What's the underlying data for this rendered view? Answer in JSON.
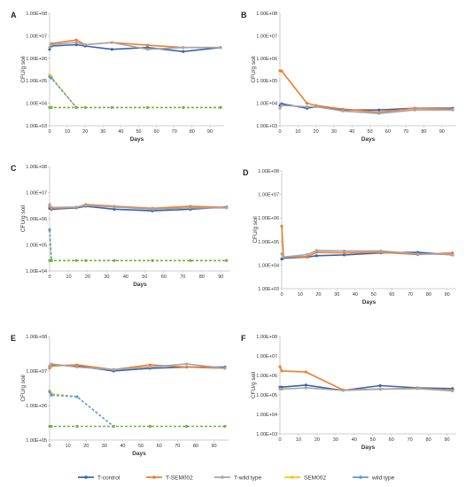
{
  "colors": {
    "T-control": "#3a64b0",
    "T-SEM002": "#ee7d30",
    "T-wild type": "#a5a5a5",
    "SEM002": "#f5c518",
    "wild type": "#5b9bd5",
    "dashed_green": "#6fb33f"
  },
  "legend": {
    "items": [
      "T-control",
      "T-SEM002",
      "T-wild type",
      "SEM002",
      "wild type"
    ]
  },
  "chart_data": [
    {
      "type": "line",
      "panel": "A",
      "xlabel": "Days",
      "ylabel": "CFU/g soil",
      "yscale": "log",
      "ylim": [
        1000,
        100000000
      ],
      "xlim": [
        0,
        98
      ],
      "yticks": [
        "1.00E+03",
        "1.00E+04",
        "1.00E+05",
        "1.00E+06",
        "1.00E+07",
        "1.00E+08"
      ],
      "xticks": [
        0,
        10,
        20,
        30,
        40,
        50,
        60,
        70,
        80,
        90
      ],
      "series": [
        {
          "name": "T-control",
          "x": [
            0,
            1,
            15,
            20,
            35,
            55,
            75,
            96
          ],
          "y": [
            2500000,
            3500000,
            4000000,
            3500000,
            2500000,
            3000000,
            2000000,
            3000000
          ]
        },
        {
          "name": "T-SEM002",
          "x": [
            0,
            1,
            15,
            20,
            35,
            55,
            75,
            96
          ],
          "y": [
            3000000,
            4500000,
            6500000,
            4000000,
            5000000,
            3800000,
            3000000,
            3000000
          ]
        },
        {
          "name": "T-wild type",
          "x": [
            0,
            1,
            15,
            20,
            35,
            55,
            75,
            96
          ],
          "y": [
            3000000,
            4000000,
            5000000,
            4000000,
            5000000,
            2500000,
            3000000,
            3000000
          ]
        },
        {
          "name": "SEM002",
          "x": [
            0,
            1,
            15
          ],
          "y": [
            180000,
            150000,
            6500
          ],
          "dashed": true
        },
        {
          "name": "wild type",
          "x": [
            0,
            1,
            15
          ],
          "y": [
            150000,
            130000,
            6500
          ],
          "dashed": true
        },
        {
          "name": "green-dashed",
          "x": [
            0,
            1,
            15,
            20,
            35,
            55,
            75,
            96
          ],
          "y": [
            6500,
            6500,
            6500,
            6500,
            6500,
            6500,
            6500,
            6500
          ],
          "dashed": true
        }
      ]
    },
    {
      "type": "line",
      "panel": "B",
      "xlabel": "Days",
      "ylabel": "CFU/g soil",
      "yscale": "log",
      "ylim": [
        1000,
        100000000
      ],
      "xlim": [
        0,
        98
      ],
      "yticks": [
        "1.00E+03",
        "1.00E+04",
        "1.00E+05",
        "1.00E+06",
        "1.00E+07",
        "1.00E+08"
      ],
      "xticks": [
        0,
        10,
        20,
        30,
        40,
        50,
        60,
        70,
        80,
        90
      ],
      "series": [
        {
          "name": "T-control",
          "x": [
            0,
            1,
            15,
            20,
            35,
            55,
            75,
            96
          ],
          "y": [
            8000,
            9500,
            6000,
            7000,
            5000,
            5000,
            6000,
            6000
          ]
        },
        {
          "name": "T-SEM002",
          "x": [
            0,
            1,
            15,
            20,
            35,
            55,
            75,
            96
          ],
          "y": [
            280000,
            270000,
            10000,
            8000,
            5500,
            4000,
            6000,
            5500
          ]
        },
        {
          "name": "T-wild type",
          "x": [
            0,
            1,
            15,
            20,
            35,
            55,
            75,
            96
          ],
          "y": [
            6000,
            8000,
            7000,
            7000,
            4500,
            3500,
            5000,
            5000
          ]
        }
      ]
    },
    {
      "type": "line",
      "panel": "C",
      "xlabel": "Days",
      "ylabel": "CFU/g soil",
      "yscale": "log",
      "ylim": [
        10000,
        100000000
      ],
      "xlim": [
        0,
        95
      ],
      "yticks": [
        "1.00E+04",
        "1.00E+05",
        "1.00E+06",
        "1.00E+07",
        "1.00E+08"
      ],
      "xticks": [
        0,
        10,
        20,
        30,
        40,
        50,
        60,
        70,
        80,
        90
      ],
      "series": [
        {
          "name": "T-control",
          "x": [
            0,
            1,
            14,
            19,
            34,
            54,
            74,
            93
          ],
          "y": [
            2500000,
            2300000,
            2600000,
            3000000,
            2300000,
            2000000,
            2300000,
            2800000
          ]
        },
        {
          "name": "T-SEM002",
          "x": [
            0,
            1,
            14,
            19,
            34,
            54,
            74,
            93
          ],
          "y": [
            3000000,
            2500000,
            2700000,
            3500000,
            3000000,
            2500000,
            3000000,
            2700000
          ]
        },
        {
          "name": "T-wild type",
          "x": [
            0,
            1,
            14,
            19,
            34,
            54,
            74,
            93
          ],
          "y": [
            3500000,
            2700000,
            2800000,
            3200000,
            2800000,
            2300000,
            2600000,
            2600000
          ]
        },
        {
          "name": "SEM002",
          "x": [
            0,
            1
          ],
          "y": [
            350000,
            25000
          ],
          "dashed": true
        },
        {
          "name": "wild type",
          "x": [
            0,
            1
          ],
          "y": [
            380000,
            25000
          ],
          "dashed": true
        },
        {
          "name": "green-dashed",
          "x": [
            0,
            1,
            14,
            19,
            34,
            54,
            74,
            93
          ],
          "y": [
            25000,
            25000,
            25000,
            25000,
            25000,
            25000,
            25000,
            25000
          ],
          "dashed": true
        }
      ]
    },
    {
      "type": "line",
      "panel": "D",
      "xlabel": "Days",
      "ylabel": "CFU/g soil",
      "yscale": "log",
      "ylim": [
        1000,
        100000000
      ],
      "xlim": [
        0,
        95
      ],
      "yticks": [
        "1.00E+03",
        "1.00E+04",
        "1.00E+05",
        "1.00E+06",
        "1.00E+07",
        "1.00E+08"
      ],
      "xticks": [
        0,
        10,
        20,
        30,
        40,
        50,
        60,
        70,
        80,
        90
      ],
      "series": [
        {
          "name": "T-control",
          "x": [
            0,
            1,
            14,
            19,
            34,
            54,
            74,
            93
          ],
          "y": [
            18000,
            20000,
            22000,
            25000,
            27000,
            33000,
            35000,
            27000
          ]
        },
        {
          "name": "T-SEM002",
          "x": [
            0,
            1,
            14,
            19,
            34,
            54,
            74,
            93
          ],
          "y": [
            450000,
            22000,
            23000,
            35000,
            33000,
            35000,
            28000,
            33000
          ]
        },
        {
          "name": "T-wild type",
          "x": [
            0,
            1,
            14,
            19,
            34,
            54,
            74,
            93
          ],
          "y": [
            30000,
            22000,
            28000,
            42000,
            40000,
            40000,
            30000,
            28000
          ]
        }
      ]
    },
    {
      "type": "line",
      "panel": "E",
      "xlabel": "Days",
      "ylabel": "CFU/g soil",
      "yscale": "log",
      "ylim": [
        100000,
        100000000
      ],
      "xlim": [
        0,
        98
      ],
      "yticks": [
        "1.00E+05",
        "1.00E+06",
        "1.00E+07",
        "1.00E+08"
      ],
      "xticks": [
        0,
        10,
        20,
        30,
        40,
        50,
        60,
        70,
        80,
        90
      ],
      "series": [
        {
          "name": "T-control",
          "x": [
            0,
            1,
            15,
            35,
            55,
            75,
            96
          ],
          "y": [
            13000000,
            15000000,
            14000000,
            10000000,
            12000000,
            13000000,
            13000000
          ]
        },
        {
          "name": "T-SEM002",
          "x": [
            0,
            1,
            15,
            35,
            55,
            75,
            96
          ],
          "y": [
            12000000,
            14000000,
            15000000,
            11000000,
            15000000,
            13000000,
            12000000
          ]
        },
        {
          "name": "T-wild type",
          "x": [
            0,
            1,
            15,
            35,
            55,
            75,
            96
          ],
          "y": [
            14000000,
            16000000,
            13000000,
            11000000,
            13000000,
            16000000,
            12000000
          ]
        },
        {
          "name": "SEM002",
          "x": [
            0,
            1,
            15
          ],
          "y": [
            2700000,
            2200000,
            1800000
          ],
          "dashed": true
        },
        {
          "name": "wild type",
          "x": [
            0,
            1,
            15,
            35
          ],
          "y": [
            2500000,
            2000000,
            1800000,
            250000
          ],
          "dashed": true
        },
        {
          "name": "green-dashed",
          "x": [
            0,
            1,
            15,
            35,
            55,
            75,
            96
          ],
          "y": [
            250000,
            250000,
            250000,
            250000,
            250000,
            250000,
            250000
          ],
          "dashed": true
        }
      ]
    },
    {
      "type": "line",
      "panel": "F",
      "xlabel": "Days",
      "ylabel": "CFU/g soil",
      "yscale": "log",
      "ylim": [
        1000,
        100000000
      ],
      "xlim": [
        0,
        95
      ],
      "yticks": [
        "1.00E+03",
        "1.00E+04",
        "1.00E+05",
        "1.00E+06",
        "1.00E+07",
        "1.00E+08"
      ],
      "xticks": [
        0,
        10,
        20,
        30,
        40,
        50,
        60,
        70,
        80,
        90
      ],
      "series": [
        {
          "name": "T-control",
          "x": [
            0,
            1,
            14,
            34,
            54,
            74,
            93
          ],
          "y": [
            250000,
            250000,
            320000,
            170000,
            300000,
            230000,
            210000
          ]
        },
        {
          "name": "T-SEM002",
          "x": [
            0,
            1,
            14,
            34,
            54,
            74,
            93
          ],
          "y": [
            2800000,
            1700000,
            1500000,
            180000,
            200000,
            220000,
            170000
          ]
        },
        {
          "name": "T-wild type",
          "x": [
            0,
            1,
            14,
            34,
            54,
            74,
            93
          ],
          "y": [
            200000,
            200000,
            230000,
            170000,
            200000,
            210000,
            160000
          ]
        }
      ]
    }
  ]
}
